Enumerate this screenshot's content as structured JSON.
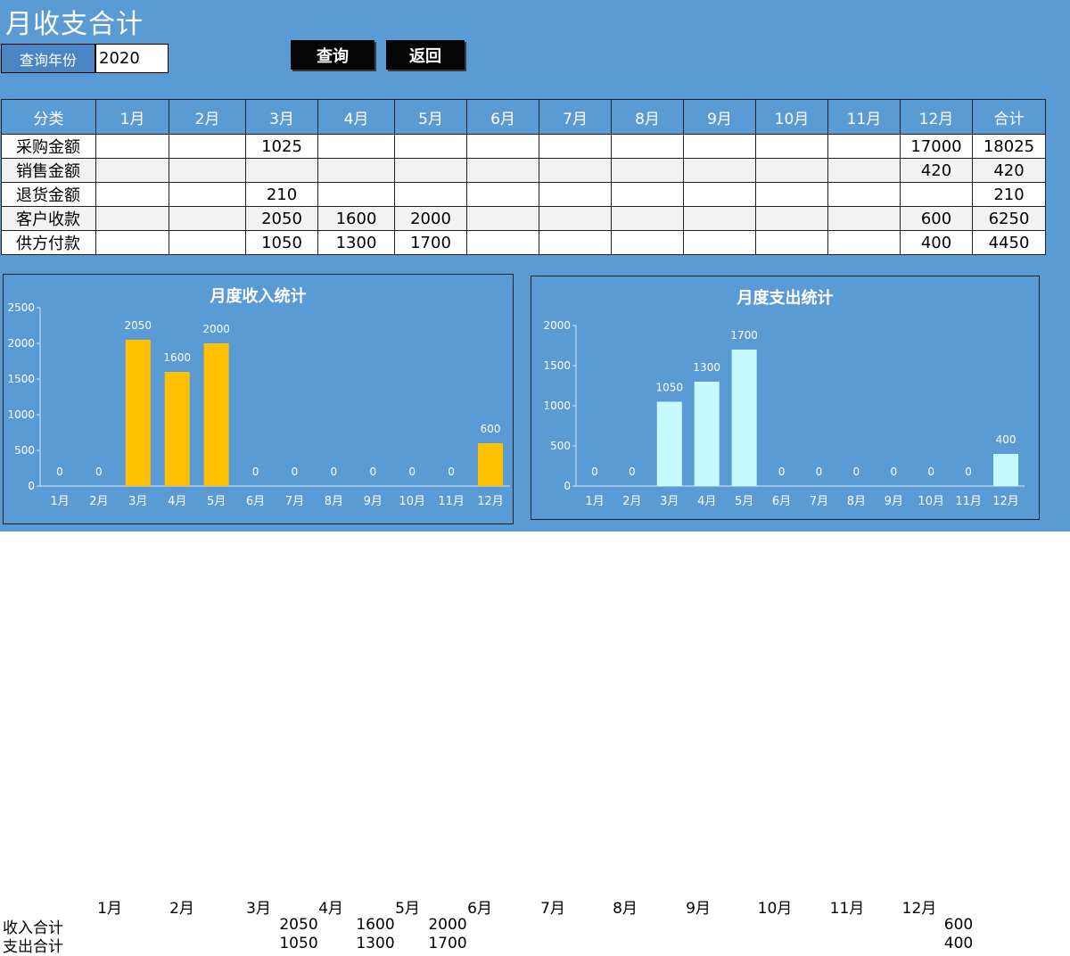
{
  "page": {
    "title": "月收支合计"
  },
  "query": {
    "label": "查询年份",
    "year": "2020",
    "query_button": "查询",
    "back_button": "返回"
  },
  "table": {
    "headers": [
      "分类",
      "1月",
      "2月",
      "3月",
      "4月",
      "5月",
      "6月",
      "7月",
      "8月",
      "9月",
      "10月",
      "11月",
      "12月",
      "合计"
    ],
    "rows": [
      {
        "label": "采购金额",
        "cells": [
          "",
          "",
          "1025",
          "",
          "",
          "",
          "",
          "",
          "",
          "",
          "",
          "17000",
          "18025"
        ]
      },
      {
        "label": "销售金额",
        "cells": [
          "",
          "",
          "",
          "",
          "",
          "",
          "",
          "",
          "",
          "",
          "",
          "420",
          "420"
        ]
      },
      {
        "label": "退货金额",
        "cells": [
          "",
          "",
          "210",
          "",
          "",
          "",
          "",
          "",
          "",
          "",
          "",
          "",
          "210"
        ]
      },
      {
        "label": "客户收款",
        "cells": [
          "",
          "",
          "2050",
          "1600",
          "2000",
          "",
          "",
          "",
          "",
          "",
          "",
          "600",
          "6250"
        ]
      },
      {
        "label": "供方付款",
        "cells": [
          "",
          "",
          "1050",
          "1300",
          "1700",
          "",
          "",
          "",
          "",
          "",
          "",
          "400",
          "4450"
        ]
      }
    ]
  },
  "colors": {
    "panel": "#5b9bd5",
    "income_bar": "#ffc000",
    "expense_bar": "#c5fbff",
    "text": "#ffffff"
  },
  "chart_data": [
    {
      "type": "bar",
      "title": "月度收入统计",
      "categories": [
        "1月",
        "2月",
        "3月",
        "4月",
        "5月",
        "6月",
        "7月",
        "8月",
        "9月",
        "10月",
        "11月",
        "12月"
      ],
      "values": [
        0,
        0,
        2050,
        1600,
        2000,
        0,
        0,
        0,
        0,
        0,
        0,
        600
      ],
      "yticks": [
        0,
        500,
        1000,
        1500,
        2000,
        2500
      ],
      "ylim": [
        0,
        2500
      ],
      "color": "#ffc000"
    },
    {
      "type": "bar",
      "title": "月度支出统计",
      "categories": [
        "1月",
        "2月",
        "3月",
        "4月",
        "5月",
        "6月",
        "7月",
        "8月",
        "9月",
        "10月",
        "11月",
        "12月"
      ],
      "values": [
        0,
        0,
        1050,
        1300,
        1700,
        0,
        0,
        0,
        0,
        0,
        0,
        400
      ],
      "yticks": [
        0,
        500,
        1000,
        1500,
        2000
      ],
      "ylim": [
        0,
        2000
      ],
      "color": "#c5fbff"
    }
  ],
  "summary": {
    "months": [
      "1月",
      "2月",
      "3月",
      "4月",
      "5月",
      "6月",
      "7月",
      "8月",
      "9月",
      "10月",
      "11月",
      "12月"
    ],
    "income_label": "收入合计",
    "expense_label": "支出合计",
    "income": [
      "",
      "",
      "2050",
      "1600",
      "2000",
      "",
      "",
      "",
      "",
      "",
      "",
      "600"
    ],
    "expense": [
      "",
      "",
      "1050",
      "1300",
      "1700",
      "",
      "",
      "",
      "",
      "",
      "",
      "400"
    ]
  }
}
